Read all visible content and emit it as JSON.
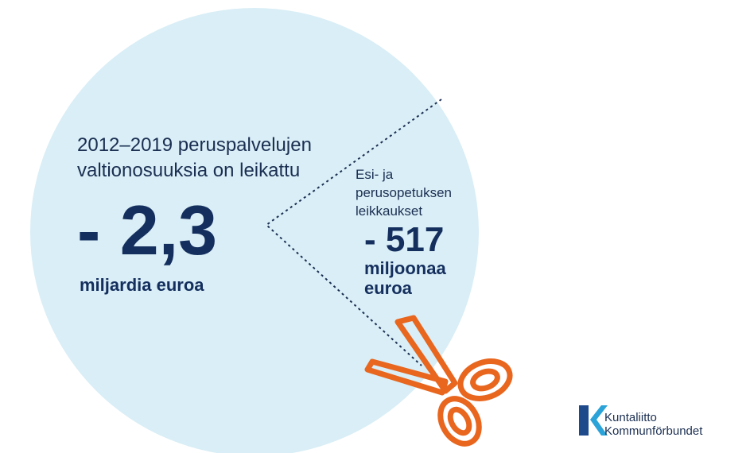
{
  "main": {
    "intro": [
      "2012–2019 peruspalvelujen",
      "valtionosuuksia on leikattu"
    ],
    "figure": "- 2,3",
    "unit": "miljardia euroa"
  },
  "slice": {
    "intro": [
      "Esi- ja",
      "perusopetuksen",
      "leikkaukset"
    ],
    "figure": "- 517",
    "unit": [
      "miljoonaa",
      "euroa"
    ]
  },
  "logo": {
    "lines": [
      "Kuntaliitto",
      "Kommunförbundet"
    ]
  }
}
